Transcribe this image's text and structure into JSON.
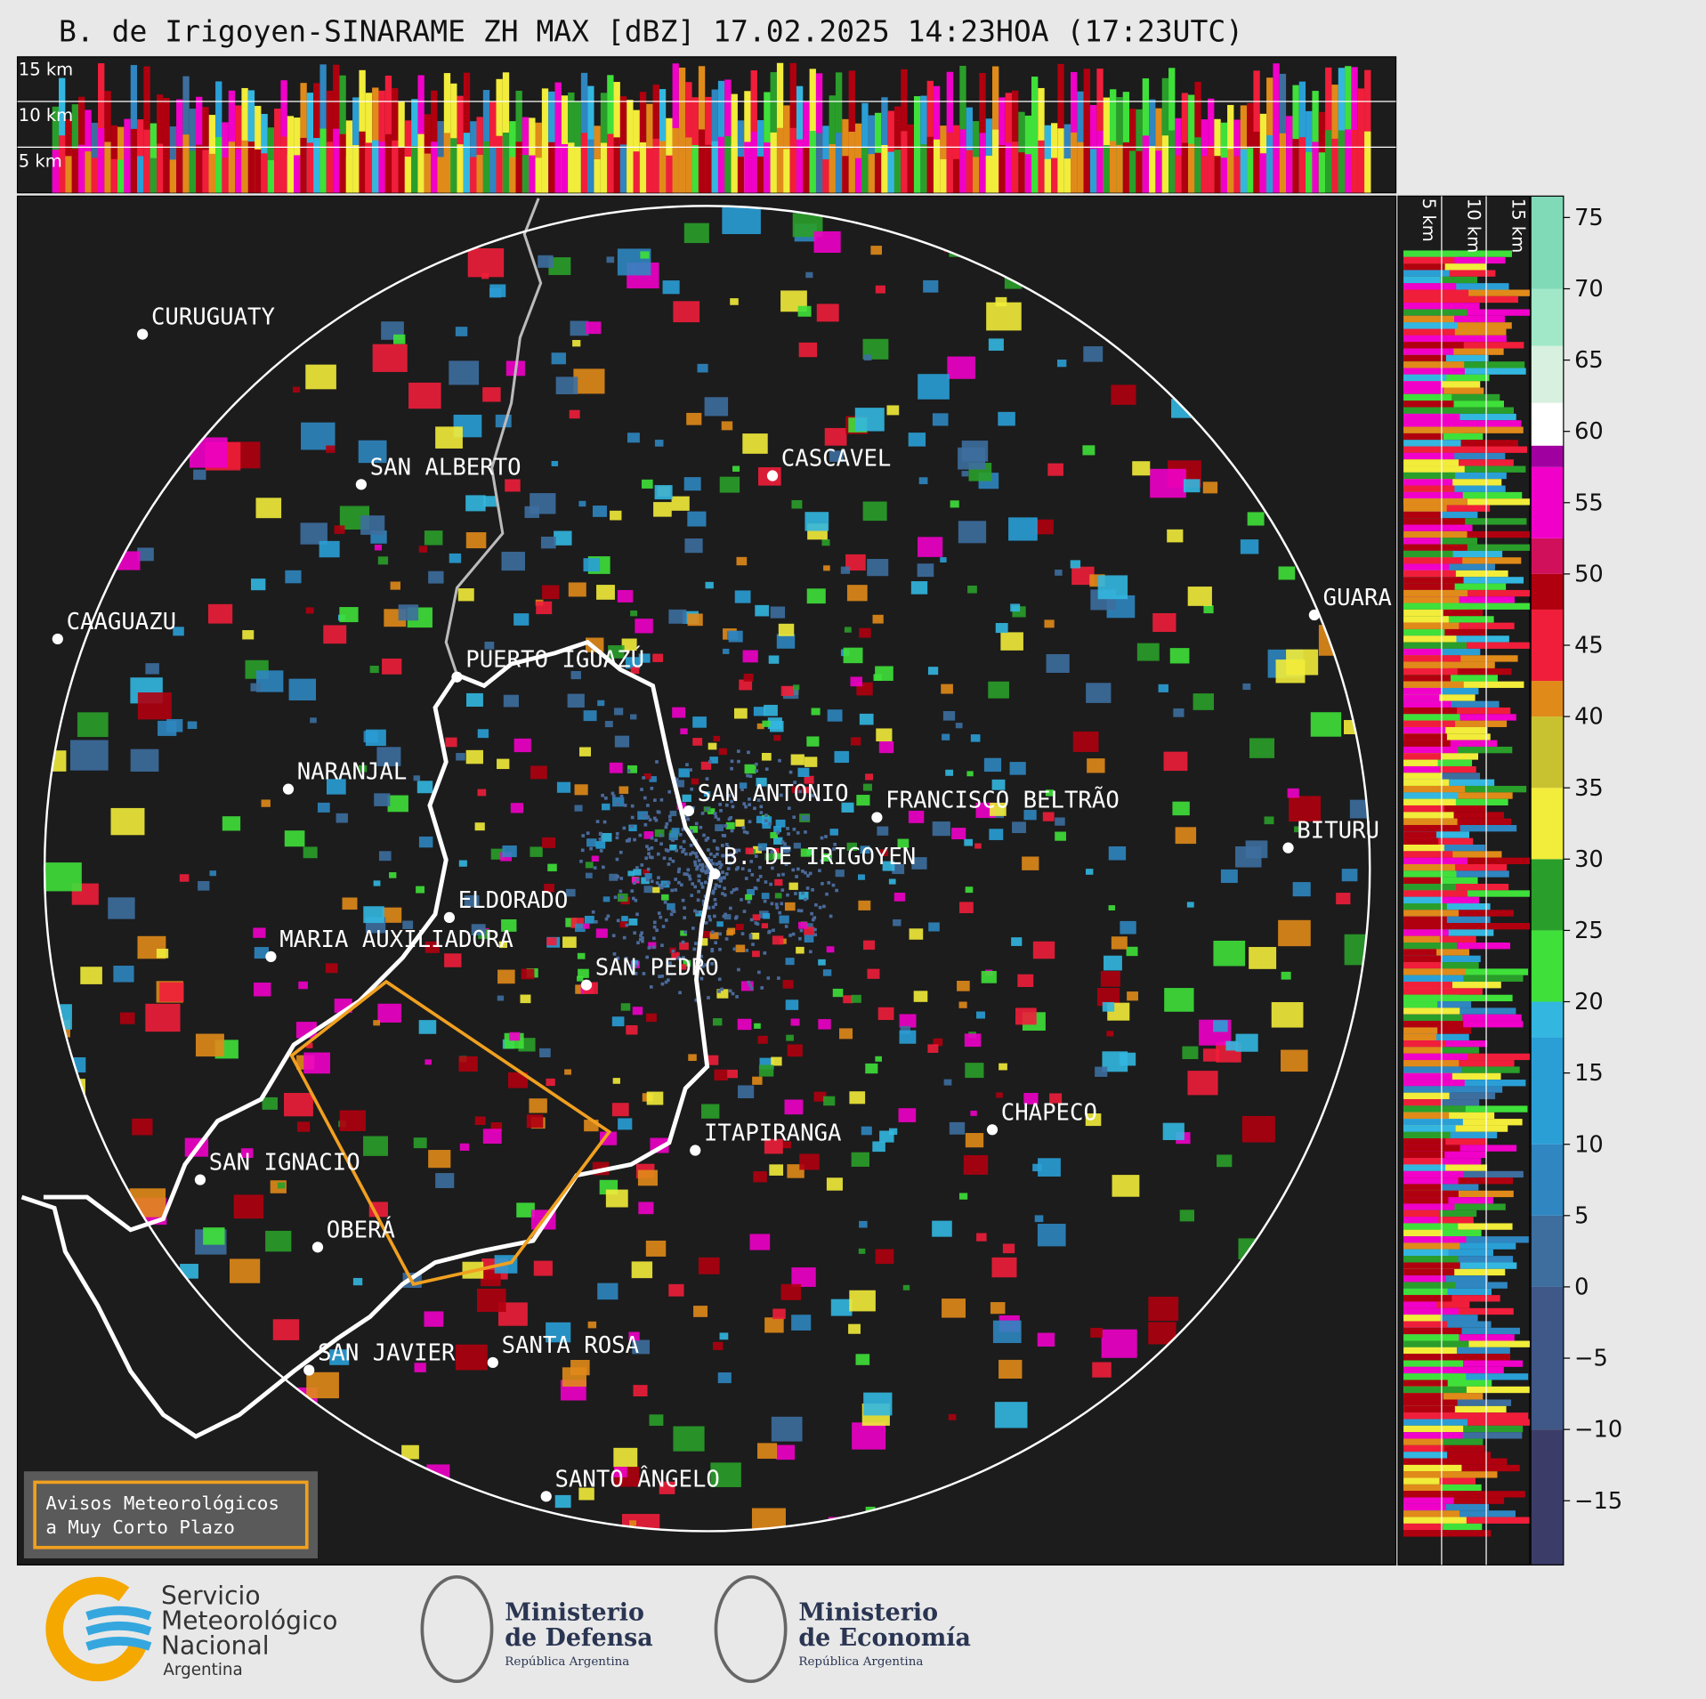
{
  "title": "B. de Irigoyen-SINARAME ZH MAX [dBZ] 17.02.2025 14:23HOA (17:23UTC)",
  "height_labels": [
    "15 km",
    "10 km",
    "5 km"
  ],
  "side_height_labels": [
    "5 km",
    "10 km",
    "15 km"
  ],
  "cities": [
    "CURUGUATY",
    "SAN ALBERTO",
    "CASCAVEL",
    "CAAGUAZU",
    "GUARA",
    "PUERTO IGUAZÚ",
    "NARANJAL",
    "SAN ANTONIO",
    "FRANCISCO BELTRÃO",
    "BITURU",
    "B. DE IRIGOYEN",
    "ELDORADO",
    "MARIA AUXILIADORA",
    "SAN PEDRO",
    "ITAPIRANGA",
    "CHAPECO",
    "SAN IGNACIO",
    "OBERÁ",
    "SAN JAVIER",
    "SANTA ROSA",
    "SANTO ÂNGELO"
  ],
  "warning_box": [
    "Avisos Meteorológicos",
    "a Muy Corto Plazo"
  ],
  "colorbar": {
    "range": [
      -19.5,
      76.5
    ],
    "ticks": [
      {
        "value": -15,
        "label": "−15"
      },
      {
        "value": -10,
        "label": "−10"
      },
      {
        "value": -5,
        "label": "−5"
      },
      0,
      5,
      10,
      15,
      20,
      25,
      30,
      35,
      40,
      45,
      50,
      55,
      60,
      65,
      70,
      75
    ],
    "stops": [
      {
        "value": -19.5,
        "color": "#3b3d68"
      },
      {
        "value": -10,
        "color": "#3f5888"
      },
      {
        "value": 0,
        "color": "#3d6e9e"
      },
      {
        "value": 5,
        "color": "#2f86c0"
      },
      {
        "value": 10,
        "color": "#2a9fd6"
      },
      {
        "value": 17.5,
        "color": "#33b7e0"
      },
      {
        "value": 20,
        "color": "#3fe03a"
      },
      {
        "value": 25,
        "color": "#2a9e2a"
      },
      {
        "value": 30,
        "color": "#f2ec3a"
      },
      {
        "value": 35,
        "color": "#c9c230"
      },
      {
        "value": 40,
        "color": "#e08a1a"
      },
      {
        "value": 42.5,
        "color": "#f01e3a"
      },
      {
        "value": 47.5,
        "color": "#b0000f"
      },
      {
        "value": 50,
        "color": "#d0105a"
      },
      {
        "value": 52.5,
        "color": "#f000c8"
      },
      {
        "value": 57.5,
        "color": "#a000a0"
      },
      {
        "value": 59,
        "color": "#ffffff"
      },
      {
        "value": 62,
        "color": "#d8f0e0"
      },
      {
        "value": 66,
        "color": "#a0e8c8"
      },
      {
        "value": 70,
        "color": "#80dab8"
      }
    ]
  },
  "logos": {
    "smn": [
      "Servicio",
      "Meteorológico",
      "Nacional",
      "Argentina"
    ],
    "defensa": [
      "Ministerio",
      "de Defensa",
      "República Argentina"
    ],
    "economia": [
      "Ministerio",
      "de Economía",
      "República Argentina"
    ]
  }
}
